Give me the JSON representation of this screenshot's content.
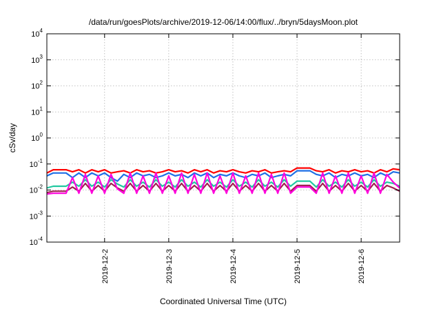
{
  "chart_data": {
    "type": "line",
    "title": "/data/run/goesPlots/archive/2019-12-06/14:00/flux/../bryn/5daysMoon.plot",
    "xlabel": "Coordinated Universal Time (UTC)",
    "ylabel": "cSv/day",
    "yscale": "log",
    "ylim": [
      0.0001,
      10000
    ],
    "xlim": [
      1.1,
      6.6
    ],
    "grid": true,
    "y_ticks": [
      {
        "value": 0.0001,
        "exp": "-4"
      },
      {
        "value": 0.001,
        "exp": "-3"
      },
      {
        "value": 0.01,
        "exp": "-2"
      },
      {
        "value": 0.1,
        "exp": "-1"
      },
      {
        "value": 1,
        "exp": "0"
      },
      {
        "value": 10,
        "exp": "1"
      },
      {
        "value": 100,
        "exp": "2"
      },
      {
        "value": 1000,
        "exp": "3"
      },
      {
        "value": 10000,
        "exp": "4"
      }
    ],
    "y_tick_base": "10",
    "x_ticks": [
      {
        "value": 2,
        "label": "2019-12-2"
      },
      {
        "value": 3,
        "label": "2019-12-3"
      },
      {
        "value": 4,
        "label": "2019-12-4"
      },
      {
        "value": 5,
        "label": "2019-12-5"
      },
      {
        "value": 6,
        "label": "2019-12-6"
      }
    ],
    "series": [
      {
        "color": "#ff0000",
        "x": [
          1.1,
          1.2,
          1.3,
          1.4,
          1.5,
          1.6,
          1.7,
          1.8,
          1.9,
          2.0,
          2.1,
          2.2,
          2.3,
          2.4,
          2.5,
          2.6,
          2.7,
          2.8,
          2.9,
          3.0,
          3.1,
          3.2,
          3.3,
          3.4,
          3.5,
          3.6,
          3.7,
          3.8,
          3.9,
          4.0,
          4.1,
          4.2,
          4.3,
          4.4,
          4.5,
          4.6,
          4.7,
          4.8,
          4.9,
          5.0,
          5.1,
          5.2,
          5.3,
          5.4,
          5.5,
          5.6,
          5.7,
          5.8,
          5.9,
          6.0,
          6.1,
          6.2,
          6.3,
          6.4,
          6.5,
          6.6
        ],
        "y": [
          0.045,
          0.06,
          0.06,
          0.06,
          0.05,
          0.06,
          0.045,
          0.06,
          0.05,
          0.06,
          0.045,
          0.05,
          0.055,
          0.045,
          0.06,
          0.05,
          0.055,
          0.045,
          0.05,
          0.06,
          0.05,
          0.055,
          0.045,
          0.06,
          0.05,
          0.06,
          0.045,
          0.055,
          0.05,
          0.06,
          0.05,
          0.045,
          0.055,
          0.05,
          0.06,
          0.045,
          0.05,
          0.055,
          0.05,
          0.07,
          0.07,
          0.07,
          0.055,
          0.05,
          0.06,
          0.045,
          0.055,
          0.05,
          0.06,
          0.05,
          0.055,
          0.045,
          0.06,
          0.05,
          0.065,
          0.06
        ]
      },
      {
        "color": "#1e6fe6",
        "x": [
          1.1,
          1.2,
          1.3,
          1.4,
          1.5,
          1.6,
          1.7,
          1.8,
          1.9,
          2.0,
          2.1,
          2.2,
          2.3,
          2.4,
          2.5,
          2.6,
          2.7,
          2.8,
          2.9,
          3.0,
          3.1,
          3.2,
          3.3,
          3.4,
          3.5,
          3.6,
          3.7,
          3.8,
          3.9,
          4.0,
          4.1,
          4.2,
          4.3,
          4.4,
          4.5,
          4.6,
          4.7,
          4.8,
          4.9,
          5.0,
          5.1,
          5.2,
          5.3,
          5.4,
          5.5,
          5.6,
          5.7,
          5.8,
          5.9,
          6.0,
          6.1,
          6.2,
          6.3,
          6.4,
          6.5,
          6.6
        ],
        "y": [
          0.035,
          0.045,
          0.045,
          0.045,
          0.03,
          0.045,
          0.03,
          0.045,
          0.035,
          0.045,
          0.03,
          0.022,
          0.04,
          0.03,
          0.045,
          0.035,
          0.04,
          0.03,
          0.035,
          0.045,
          0.035,
          0.04,
          0.03,
          0.045,
          0.035,
          0.045,
          0.03,
          0.04,
          0.035,
          0.045,
          0.035,
          0.03,
          0.04,
          0.035,
          0.045,
          0.03,
          0.035,
          0.04,
          0.035,
          0.055,
          0.055,
          0.055,
          0.04,
          0.035,
          0.045,
          0.03,
          0.04,
          0.035,
          0.045,
          0.035,
          0.04,
          0.03,
          0.045,
          0.035,
          0.05,
          0.045
        ]
      },
      {
        "color": "#20c8a0",
        "x": [
          1.1,
          1.2,
          1.3,
          1.4,
          1.5,
          1.6,
          1.7,
          1.8,
          1.9,
          2.0,
          2.1,
          2.2,
          2.3,
          2.4,
          2.5,
          2.6,
          2.7,
          2.8,
          2.9,
          3.0,
          3.1,
          3.2,
          3.3,
          3.4,
          3.5,
          3.6,
          3.7,
          3.8,
          3.9,
          4.0,
          4.1,
          4.2,
          4.3,
          4.4,
          4.5,
          4.6,
          4.7,
          4.8,
          4.9,
          5.0,
          5.1,
          5.2,
          5.3,
          5.4,
          5.5,
          5.6,
          5.7,
          5.8,
          5.9,
          6.0,
          6.1,
          6.2,
          6.3,
          6.4,
          6.5,
          6.6
        ],
        "y": [
          0.012,
          0.014,
          0.014,
          0.014,
          0.02,
          0.014,
          0.025,
          0.014,
          0.02,
          0.013,
          0.025,
          0.017,
          0.013,
          0.025,
          0.014,
          0.02,
          0.013,
          0.025,
          0.014,
          0.02,
          0.013,
          0.025,
          0.014,
          0.02,
          0.013,
          0.025,
          0.014,
          0.02,
          0.013,
          0.025,
          0.014,
          0.02,
          0.013,
          0.025,
          0.014,
          0.02,
          0.013,
          0.025,
          0.014,
          0.022,
          0.022,
          0.022,
          0.013,
          0.025,
          0.014,
          0.02,
          0.013,
          0.025,
          0.014,
          0.02,
          0.013,
          0.025,
          0.014,
          0.02,
          0.018,
          0.014
        ]
      },
      {
        "color": "#a02050",
        "x": [
          1.1,
          1.2,
          1.3,
          1.4,
          1.5,
          1.6,
          1.7,
          1.8,
          1.9,
          2.0,
          2.1,
          2.2,
          2.3,
          2.4,
          2.5,
          2.6,
          2.7,
          2.8,
          2.9,
          3.0,
          3.1,
          3.2,
          3.3,
          3.4,
          3.5,
          3.6,
          3.7,
          3.8,
          3.9,
          4.0,
          4.1,
          4.2,
          4.3,
          4.4,
          4.5,
          4.6,
          4.7,
          4.8,
          4.9,
          5.0,
          5.1,
          5.2,
          5.3,
          5.4,
          5.5,
          5.6,
          5.7,
          5.8,
          5.9,
          6.0,
          6.1,
          6.2,
          6.3,
          6.4,
          6.5,
          6.6
        ],
        "y": [
          0.008,
          0.009,
          0.009,
          0.009,
          0.013,
          0.009,
          0.018,
          0.009,
          0.015,
          0.009,
          0.018,
          0.012,
          0.009,
          0.018,
          0.009,
          0.015,
          0.009,
          0.018,
          0.009,
          0.015,
          0.009,
          0.018,
          0.009,
          0.015,
          0.009,
          0.018,
          0.009,
          0.015,
          0.009,
          0.018,
          0.009,
          0.015,
          0.009,
          0.018,
          0.009,
          0.015,
          0.009,
          0.018,
          0.009,
          0.015,
          0.015,
          0.015,
          0.009,
          0.018,
          0.009,
          0.015,
          0.009,
          0.018,
          0.009,
          0.015,
          0.009,
          0.018,
          0.009,
          0.015,
          0.012,
          0.009
        ]
      },
      {
        "color": "#ff00dd",
        "x": [
          1.1,
          1.2,
          1.3,
          1.4,
          1.5,
          1.6,
          1.7,
          1.8,
          1.9,
          2.0,
          2.1,
          2.2,
          2.3,
          2.4,
          2.5,
          2.6,
          2.7,
          2.8,
          2.9,
          3.0,
          3.1,
          3.2,
          3.3,
          3.4,
          3.5,
          3.6,
          3.7,
          3.8,
          3.9,
          4.0,
          4.1,
          4.2,
          4.3,
          4.4,
          4.5,
          4.6,
          4.7,
          4.8,
          4.9,
          5.0,
          5.1,
          5.2,
          5.3,
          5.4,
          5.5,
          5.6,
          5.7,
          5.8,
          5.9,
          6.0,
          6.1,
          6.2,
          6.3,
          6.4,
          6.5,
          6.6
        ],
        "y": [
          0.007,
          0.0075,
          0.0075,
          0.0075,
          0.03,
          0.0075,
          0.04,
          0.0075,
          0.035,
          0.0075,
          0.04,
          0.011,
          0.0075,
          0.045,
          0.0075,
          0.035,
          0.0075,
          0.045,
          0.0075,
          0.035,
          0.0075,
          0.045,
          0.0075,
          0.04,
          0.0075,
          0.045,
          0.0075,
          0.035,
          0.0075,
          0.045,
          0.0075,
          0.035,
          0.0075,
          0.045,
          0.0075,
          0.04,
          0.0075,
          0.045,
          0.0075,
          0.013,
          0.013,
          0.013,
          0.0075,
          0.045,
          0.0075,
          0.035,
          0.0075,
          0.045,
          0.0075,
          0.035,
          0.0075,
          0.045,
          0.0075,
          0.04,
          0.02,
          0.012
        ]
      }
    ]
  }
}
